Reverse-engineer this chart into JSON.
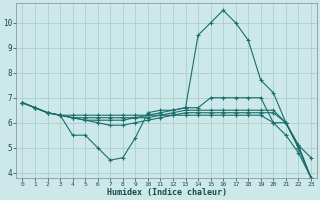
{
  "xlabel": "Humidex (Indice chaleur)",
  "bg_color": "#cce8e8",
  "grid_color": "#aad0d0",
  "line_color": "#1a6e6a",
  "xlim": [
    -0.5,
    23.5
  ],
  "ylim": [
    3.8,
    10.8
  ],
  "yticks": [
    4,
    5,
    6,
    7,
    8,
    9,
    10
  ],
  "xticks": [
    0,
    1,
    2,
    3,
    4,
    5,
    6,
    7,
    8,
    9,
    10,
    11,
    12,
    13,
    14,
    15,
    16,
    17,
    18,
    19,
    20,
    21,
    22,
    23
  ],
  "line1_x": [
    0,
    1,
    2,
    3,
    4,
    5,
    6,
    7,
    8,
    9,
    10,
    11,
    12,
    13,
    14,
    15,
    16,
    17,
    18,
    19,
    20,
    21,
    22,
    23
  ],
  "line1_y": [
    6.8,
    6.6,
    6.4,
    6.3,
    5.5,
    5.5,
    5.0,
    4.5,
    4.6,
    5.4,
    6.4,
    6.5,
    6.5,
    6.6,
    9.5,
    10.0,
    10.5,
    10.0,
    9.3,
    7.7,
    7.2,
    6.0,
    5.1,
    4.6
  ],
  "line2_x": [
    0,
    1,
    2,
    3,
    4,
    5,
    6,
    7,
    8,
    9,
    10,
    11,
    12,
    13,
    14,
    15,
    16,
    17,
    18,
    19,
    20,
    21,
    22,
    23
  ],
  "line2_y": [
    6.8,
    6.6,
    6.4,
    6.3,
    6.3,
    6.3,
    6.3,
    6.3,
    6.3,
    6.3,
    6.3,
    6.4,
    6.5,
    6.6,
    6.6,
    7.0,
    7.0,
    7.0,
    7.0,
    7.0,
    6.0,
    6.0,
    5.1,
    3.8
  ],
  "line3_x": [
    0,
    1,
    2,
    3,
    4,
    5,
    6,
    7,
    8,
    9,
    10,
    11,
    12,
    13,
    14,
    15,
    16,
    17,
    18,
    19,
    20,
    21,
    22,
    23
  ],
  "line3_y": [
    6.8,
    6.6,
    6.4,
    6.3,
    6.2,
    6.2,
    6.2,
    6.2,
    6.2,
    6.2,
    6.2,
    6.3,
    6.4,
    6.5,
    6.5,
    6.5,
    6.5,
    6.5,
    6.5,
    6.5,
    6.5,
    6.0,
    5.0,
    3.8
  ],
  "line4_x": [
    0,
    1,
    2,
    3,
    4,
    5,
    6,
    7,
    8,
    9,
    10,
    11,
    12,
    13,
    14,
    15,
    16,
    17,
    18,
    19,
    20,
    21,
    22,
    23
  ],
  "line4_y": [
    6.8,
    6.6,
    6.4,
    6.3,
    6.2,
    6.1,
    6.1,
    6.1,
    6.1,
    6.2,
    6.3,
    6.3,
    6.3,
    6.4,
    6.4,
    6.4,
    6.4,
    6.4,
    6.4,
    6.4,
    6.4,
    6.0,
    5.0,
    3.8
  ],
  "line5_x": [
    0,
    1,
    2,
    3,
    4,
    5,
    6,
    7,
    8,
    9,
    10,
    11,
    12,
    13,
    14,
    15,
    16,
    17,
    18,
    19,
    20,
    21,
    22,
    23
  ],
  "line5_y": [
    6.8,
    6.6,
    6.4,
    6.3,
    6.2,
    6.1,
    6.0,
    5.9,
    5.9,
    6.0,
    6.1,
    6.2,
    6.3,
    6.3,
    6.3,
    6.3,
    6.3,
    6.3,
    6.3,
    6.3,
    6.0,
    5.5,
    4.8,
    3.8
  ]
}
